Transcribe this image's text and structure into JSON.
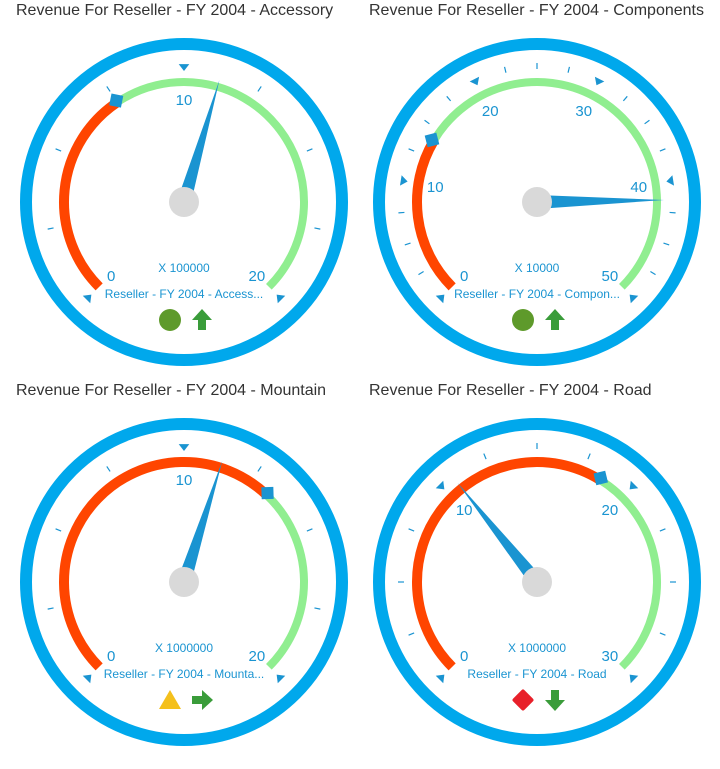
{
  "colors": {
    "frame": "#00a8ec",
    "low_range": "#ff4500",
    "high_range": "#90ee90",
    "needle": "#1a94d1",
    "hub": "#d9d9d9",
    "label": "#1a94d1",
    "status_good": "#5e9a2b",
    "status_warning": "#f4c01c",
    "status_bad": "#e8202a",
    "trend": "#3a9c3a"
  },
  "gauges": [
    {
      "title": "Revenue For Reseller - FY 2004 - Accessory",
      "scale_label": "X 100000",
      "caption": "Reseller - FY 2004 - Access...",
      "min": 0,
      "max": 20,
      "major_interval": 10,
      "tick_labels": [
        "0",
        "10",
        "20"
      ],
      "value": 11.2,
      "target": 7.5,
      "status": "good",
      "status_icon": "circle-icon",
      "trend": "up",
      "trend_icon": "arrow-up-icon"
    },
    {
      "title": "Revenue For Reseller - FY 2004 - Components",
      "scale_label": "X 10000",
      "caption": "Reseller - FY 2004 - Compon...",
      "min": 0,
      "max": 50,
      "major_interval": 10,
      "tick_labels": [
        "0",
        "10",
        "20",
        "30",
        "40",
        "50"
      ],
      "value": 41.5,
      "target": 14,
      "status": "good",
      "status_icon": "circle-icon",
      "trend": "up",
      "trend_icon": "arrow-up-icon"
    },
    {
      "title": "Revenue For Reseller - FY 2004 - Mountain",
      "scale_label": "X 1000000",
      "caption": "Reseller - FY 2004 - Mounta...",
      "min": 0,
      "max": 20,
      "major_interval": 10,
      "tick_labels": [
        "0",
        "10",
        "20"
      ],
      "value": 11.3,
      "target": 13.2,
      "status": "warning",
      "status_icon": "triangle-icon",
      "trend": "right",
      "trend_icon": "arrow-right-icon"
    },
    {
      "title": "Revenue For Reseller - FY 2004 - Road",
      "scale_label": "X 1000000",
      "caption": "Reseller - FY 2004 - Road",
      "min": 0,
      "max": 30,
      "major_interval": 10,
      "tick_labels": [
        "0",
        "10",
        "20",
        "30"
      ],
      "value": 10.7,
      "target": 18.5,
      "status": "bad",
      "status_icon": "diamond-icon",
      "trend": "down",
      "trend_icon": "arrow-down-icon"
    }
  ]
}
